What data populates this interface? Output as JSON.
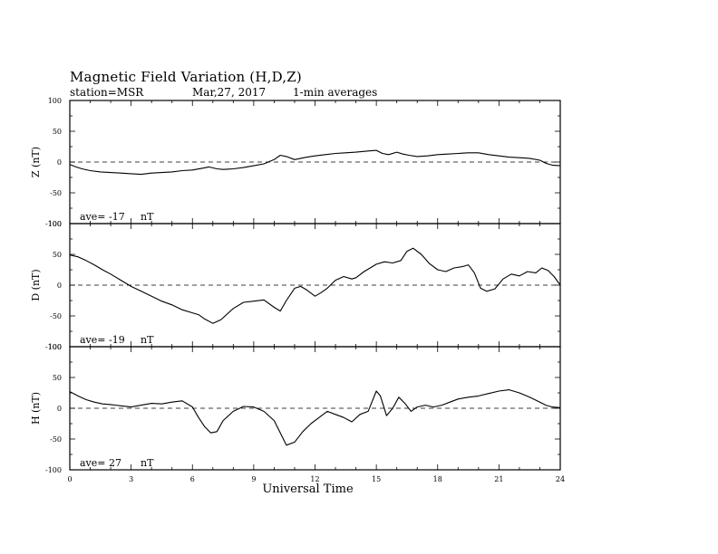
{
  "header": {
    "title": "Magnetic Field Variation (H,D,Z)",
    "station": "station=MSR",
    "date": "Mar,27, 2017",
    "averaging": "1-min averages"
  },
  "chart_data": {
    "type": "line",
    "xlabel": "Universal Time",
    "xlim": [
      0,
      24
    ],
    "x_ticks": [
      "0",
      "3",
      "6",
      "9",
      "12",
      "15",
      "18",
      "21",
      "24"
    ],
    "y_ticks": [
      "100",
      "50",
      "0",
      "-50",
      "-100"
    ],
    "panels": [
      {
        "ylabel": "Z (nT)",
        "ylim": [
          -100,
          100
        ],
        "ave_label": "ave= -17",
        "unit_label": "nT",
        "x": [
          0,
          0.3,
          0.6,
          1,
          1.5,
          2,
          2.5,
          3,
          3.5,
          4,
          4.5,
          5,
          5.5,
          6,
          6.5,
          6.8,
          7.2,
          7.5,
          8,
          8.5,
          9,
          9.5,
          10,
          10.3,
          10.6,
          11,
          11.3,
          11.6,
          12,
          12.5,
          13,
          13.5,
          14,
          14.3,
          14.6,
          15,
          15.3,
          15.6,
          16,
          16.3,
          16.6,
          17,
          17.5,
          18,
          18.5,
          19,
          19.5,
          20,
          20.5,
          21,
          21.5,
          22,
          22.5,
          23,
          23.3,
          23.6,
          24
        ],
        "y": [
          -4,
          -8,
          -11,
          -14,
          -16,
          -17,
          -18,
          -19,
          -20,
          -18,
          -17,
          -16,
          -14,
          -13,
          -10,
          -8,
          -11,
          -12,
          -11,
          -9,
          -6,
          -3,
          4,
          11,
          9,
          4,
          6,
          8,
          10,
          12,
          14,
          15,
          16,
          17,
          18,
          19,
          14,
          12,
          16,
          13,
          11,
          9,
          10,
          12,
          13,
          14,
          15,
          15,
          12,
          10,
          8,
          7,
          6,
          3,
          -2,
          -5,
          -6
        ]
      },
      {
        "ylabel": "D (nT)",
        "ylim": [
          -100,
          100
        ],
        "ave_label": "ave= -19",
        "unit_label": "nT",
        "x": [
          0,
          0.4,
          0.8,
          1.2,
          1.6,
          2,
          2.5,
          3,
          3.5,
          4,
          4.5,
          5,
          5.5,
          6,
          6.3,
          6.6,
          7,
          7.4,
          8,
          8.5,
          9,
          9.5,
          10,
          10.3,
          10.6,
          11,
          11.3,
          11.6,
          12,
          12.3,
          12.6,
          13,
          13.4,
          13.8,
          14,
          14.4,
          14.8,
          15,
          15.4,
          15.8,
          16.2,
          16.5,
          16.8,
          17.2,
          17.6,
          18,
          18.4,
          18.8,
          19.2,
          19.5,
          19.8,
          20.1,
          20.4,
          20.8,
          21.2,
          21.6,
          22,
          22.4,
          22.8,
          23.1,
          23.4,
          23.7,
          24
        ],
        "y": [
          49,
          46,
          40,
          33,
          25,
          18,
          8,
          -2,
          -10,
          -18,
          -26,
          -32,
          -40,
          -45,
          -48,
          -55,
          -62,
          -56,
          -38,
          -28,
          -26,
          -24,
          -36,
          -42,
          -25,
          -5,
          -2,
          -8,
          -18,
          -12,
          -5,
          8,
          14,
          10,
          12,
          22,
          30,
          34,
          38,
          36,
          40,
          55,
          60,
          50,
          35,
          25,
          22,
          28,
          30,
          33,
          20,
          -5,
          -10,
          -6,
          10,
          18,
          15,
          22,
          20,
          28,
          24,
          14,
          0
        ]
      },
      {
        "ylabel": "H (nT)",
        "ylim": [
          -100,
          100
        ],
        "ave_label": "ave= 27",
        "unit_label": "nT",
        "x": [
          0,
          0.4,
          0.8,
          1.2,
          1.6,
          2,
          2.5,
          3,
          3.5,
          4,
          4.5,
          5,
          5.5,
          6,
          6.3,
          6.6,
          6.9,
          7.2,
          7.5,
          8,
          8.5,
          9,
          9.5,
          10,
          10.3,
          10.6,
          11,
          11.4,
          11.8,
          12.2,
          12.6,
          13,
          13.4,
          13.8,
          14.2,
          14.6,
          15,
          15.2,
          15.5,
          15.8,
          16.1,
          16.4,
          16.7,
          17,
          17.4,
          17.8,
          18.2,
          18.6,
          19,
          19.5,
          20,
          20.5,
          21,
          21.5,
          22,
          22.5,
          23,
          23.3,
          23.6,
          24
        ],
        "y": [
          27,
          20,
          14,
          10,
          7,
          6,
          4,
          2,
          5,
          8,
          7,
          10,
          12,
          2,
          -15,
          -30,
          -40,
          -38,
          -20,
          -5,
          3,
          2,
          -5,
          -20,
          -40,
          -60,
          -55,
          -38,
          -25,
          -15,
          -5,
          -10,
          -15,
          -22,
          -10,
          -5,
          28,
          20,
          -12,
          0,
          18,
          8,
          -5,
          2,
          5,
          2,
          5,
          10,
          15,
          18,
          20,
          24,
          28,
          30,
          25,
          18,
          10,
          5,
          2,
          1
        ]
      }
    ]
  }
}
